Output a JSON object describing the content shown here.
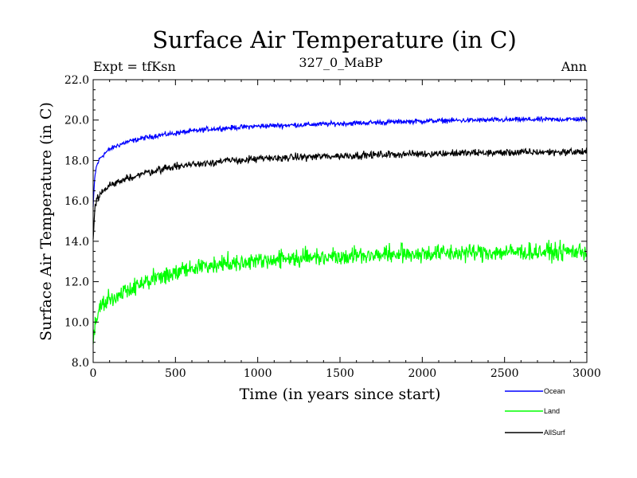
{
  "chart_data": {
    "type": "line",
    "title": "Surface Air Temperature (in C)",
    "subtitle_left": "Expt = tfKsn",
    "subtitle_center": "327_0_MaBP",
    "subtitle_right": "Ann",
    "xlabel": "Time (in years since start)",
    "ylabel": "Surface Air Temperature (in C)",
    "xlim": [
      0,
      3000
    ],
    "ylim": [
      8.0,
      22.0
    ],
    "x_ticks": [
      0,
      500,
      1000,
      1500,
      2000,
      2500,
      3000
    ],
    "x_tick_labels": [
      "0",
      "500",
      "1000",
      "1500",
      "2000",
      "2500",
      "3000"
    ],
    "y_ticks": [
      8,
      10,
      12,
      14,
      16,
      18,
      20,
      22
    ],
    "y_tick_labels": [
      "8.0",
      "10.0",
      "12.0",
      "14.0",
      "16.0",
      "18.0",
      "20.0",
      "22.0"
    ],
    "grid": false,
    "legend_position": "bottom-right, below plot",
    "series": [
      {
        "name": "Ocean",
        "color": "#0000ff",
        "x": [
          0,
          10,
          20,
          40,
          70,
          100,
          150,
          200,
          300,
          400,
          500,
          600,
          700,
          800,
          900,
          1000,
          1200,
          1400,
          1600,
          1800,
          2000,
          2200,
          2400,
          2600,
          2800,
          3000
        ],
        "y": [
          15.7,
          17.2,
          17.7,
          18.1,
          18.35,
          18.55,
          18.75,
          18.9,
          19.1,
          19.25,
          19.35,
          19.45,
          19.55,
          19.6,
          19.65,
          19.7,
          19.75,
          19.8,
          19.85,
          19.9,
          19.95,
          19.98,
          20.0,
          20.02,
          20.03,
          20.05
        ],
        "noise": 0.06
      },
      {
        "name": "Land",
        "color": "#00ff00",
        "x": [
          0,
          10,
          20,
          40,
          70,
          100,
          150,
          200,
          300,
          400,
          500,
          600,
          700,
          800,
          900,
          1000,
          1200,
          1400,
          1600,
          1800,
          2000,
          2200,
          2400,
          2600,
          2800,
          3000
        ],
        "y": [
          8.9,
          9.9,
          10.3,
          10.7,
          10.95,
          11.1,
          11.35,
          11.6,
          11.9,
          12.2,
          12.45,
          12.65,
          12.8,
          12.9,
          13.0,
          13.05,
          13.15,
          13.25,
          13.3,
          13.35,
          13.4,
          13.42,
          13.45,
          13.47,
          13.48,
          13.5
        ],
        "noise": 0.22
      },
      {
        "name": "AllSurf",
        "color": "#000000",
        "x": [
          0,
          10,
          20,
          40,
          70,
          100,
          150,
          200,
          300,
          400,
          500,
          600,
          700,
          800,
          900,
          1000,
          1200,
          1400,
          1600,
          1800,
          2000,
          2200,
          2400,
          2600,
          2800,
          3000
        ],
        "y": [
          14.1,
          15.6,
          16.0,
          16.3,
          16.55,
          16.75,
          16.95,
          17.1,
          17.35,
          17.55,
          17.7,
          17.8,
          17.9,
          17.97,
          18.02,
          18.07,
          18.15,
          18.2,
          18.25,
          18.3,
          18.33,
          18.36,
          18.38,
          18.4,
          18.42,
          18.43
        ],
        "noise": 0.09
      }
    ]
  }
}
